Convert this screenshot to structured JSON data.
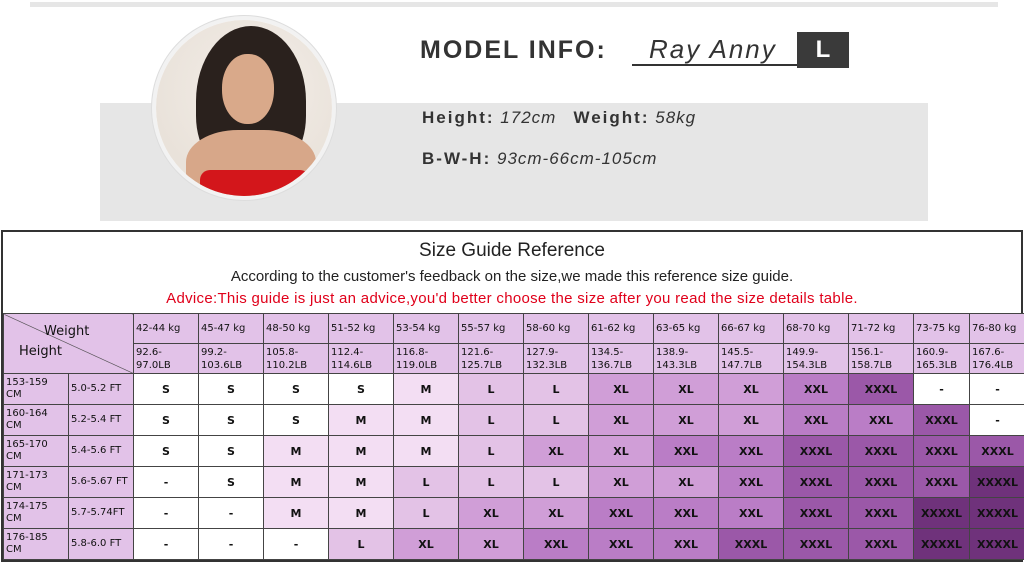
{
  "model": {
    "title": "MODEL INFO:",
    "name": "Ray Anny",
    "size": "L",
    "height_label": "Height:",
    "height_value": "172cm",
    "weight_label": "Weight:",
    "weight_value": "58kg",
    "bwh_label": "B-W-H:",
    "bwh_value": "93cm-66cm-105cm"
  },
  "guide": {
    "title": "Size Guide Reference",
    "subtitle": "According to the customer's feedback on the size,we made this reference size guide.",
    "advice": "Advice:This guide is just an advice,you'd better choose the size after you read the size details table.",
    "corner_weight": "Weight",
    "corner_height": "Height",
    "weights_kg": [
      "42-44 kg",
      "45-47 kg",
      "48-50 kg",
      "51-52 kg",
      "53-54 kg",
      "55-57 kg",
      "58-60 kg",
      "61-62 kg",
      "63-65 kg",
      "66-67 kg",
      "68-70 kg",
      "71-72 kg",
      "73-75 kg",
      "76-80 kg"
    ],
    "weights_lb": [
      [
        "92.6-",
        "97.0LB"
      ],
      [
        "99.2-",
        "103.6LB"
      ],
      [
        "105.8-",
        "110.2LB"
      ],
      [
        "112.4-",
        "114.6LB"
      ],
      [
        "116.8-",
        "119.0LB"
      ],
      [
        "121.6-",
        "125.7LB"
      ],
      [
        "127.9-",
        "132.3LB"
      ],
      [
        "134.5-",
        "136.7LB"
      ],
      [
        "138.9-",
        "143.3LB"
      ],
      [
        "145.5-",
        "147.7LB"
      ],
      [
        "149.9-",
        "154.3LB"
      ],
      [
        "156.1-",
        "158.7LB"
      ],
      [
        "160.9-",
        "165.3LB"
      ],
      [
        "167.6-",
        "176.4LB"
      ]
    ],
    "rows": [
      {
        "cm": [
          "153-159",
          "CM"
        ],
        "ft": "5.0-5.2 FT",
        "sizes": [
          "S",
          "S",
          "S",
          "S",
          "M",
          "L",
          "L",
          "XL",
          "XL",
          "XL",
          "XXL",
          "XXXL",
          "-",
          "-"
        ]
      },
      {
        "cm": [
          "160-164",
          "CM"
        ],
        "ft": "5.2-5.4 FT",
        "sizes": [
          "S",
          "S",
          "S",
          "M",
          "M",
          "L",
          "L",
          "XL",
          "XL",
          "XL",
          "XXL",
          "XXL",
          "XXXL",
          "-"
        ]
      },
      {
        "cm": [
          "165-170",
          "CM"
        ],
        "ft": "5.4-5.6 FT",
        "sizes": [
          "S",
          "S",
          "M",
          "M",
          "M",
          "L",
          "XL",
          "XL",
          "XXL",
          "XXL",
          "XXXL",
          "XXXL",
          "XXXL",
          "XXXL"
        ]
      },
      {
        "cm": [
          "171-173",
          "CM"
        ],
        "ft": "5.6-5.67 FT",
        "sizes": [
          "-",
          "S",
          "M",
          "M",
          "L",
          "L",
          "L",
          "XL",
          "XL",
          "XXL",
          "XXXL",
          "XXXL",
          "XXXL",
          "XXXXL"
        ]
      },
      {
        "cm": [
          "174-175",
          "CM"
        ],
        "ft": "5.7-5.74FT",
        "sizes": [
          "-",
          "-",
          "M",
          "M",
          "L",
          "XL",
          "XL",
          "XXL",
          "XXL",
          "XXL",
          "XXXL",
          "XXXL",
          "XXXXL",
          "XXXXL"
        ]
      },
      {
        "cm": [
          "176-185",
          "CM"
        ],
        "ft": "5.8-6.0 FT",
        "sizes": [
          "-",
          "-",
          "-",
          "L",
          "XL",
          "XL",
          "XXL",
          "XXL",
          "XXL",
          "XXXL",
          "XXXL",
          "XXXL",
          "XXXXL",
          "XXXXL"
        ]
      }
    ],
    "size_colors": {
      "-": "#ffffff",
      "S": "#ffffff",
      "M": "#f3def3",
      "L": "#e3c2e6",
      "XL": "#d09ed7",
      "XXL": "#ba7dc6",
      "XXXL": "#9b58a8",
      "XXXXL": "#6f327b"
    },
    "header_color": "#e2c2e8",
    "advice_color": "#e0001a"
  }
}
